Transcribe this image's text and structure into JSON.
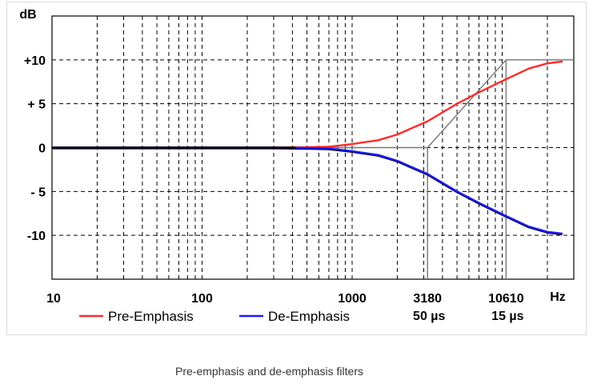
{
  "caption": "Pre-emphasis and de-emphasis filters",
  "chart_data": {
    "type": "line",
    "x_scale": "log",
    "xlim": [
      10,
      30000
    ],
    "ylim": [
      -15,
      15
    ],
    "grid": true,
    "y_unit_label": "dB",
    "x_unit_label": "Hz",
    "x_tick_labels": [
      {
        "x": 10,
        "label": "10"
      },
      {
        "x": 100,
        "label": "100"
      },
      {
        "x": 1000,
        "label": "1000"
      },
      {
        "x": 3180,
        "label": "3180",
        "sublabel": "50 µs"
      },
      {
        "x": 10610,
        "label": "10610",
        "sublabel": "15 µs"
      }
    ],
    "y_tick_labels": [
      {
        "y": 10,
        "label": "+10"
      },
      {
        "y": 5,
        "label": "+ 5"
      },
      {
        "y": 0,
        "label": "0"
      },
      {
        "y": -5,
        "label": "- 5"
      },
      {
        "y": -10,
        "label": "-10"
      }
    ],
    "series": [
      {
        "name": "Pre-Emphasis",
        "color": "#ff2a2a",
        "x": [
          10,
          300,
          500,
          700,
          1000,
          1500,
          2000,
          3180,
          5000,
          7000,
          10610,
          15000,
          20000,
          25000
        ],
        "y": [
          0,
          0,
          0.05,
          0.1,
          0.4,
          0.85,
          1.5,
          3.0,
          5.0,
          6.3,
          7.8,
          9.0,
          9.6,
          9.8
        ]
      },
      {
        "name": "De-Emphasis",
        "color": "#1a1aff",
        "x": [
          10,
          300,
          500,
          700,
          1000,
          1500,
          2000,
          3180,
          5000,
          7000,
          10610,
          15000,
          20000,
          25000
        ],
        "y": [
          0,
          0,
          -0.05,
          -0.1,
          -0.4,
          -0.85,
          -1.5,
          -3.0,
          -5.0,
          -6.3,
          -7.8,
          -9.0,
          -9.6,
          -9.8
        ]
      }
    ],
    "asymptote": {
      "x": [
        10,
        3180,
        10610,
        30000
      ],
      "y": [
        0,
        0,
        10,
        10
      ],
      "color": "#777777"
    },
    "markers_x": [
      3180,
      10610
    ],
    "legend_position": "bottom"
  }
}
